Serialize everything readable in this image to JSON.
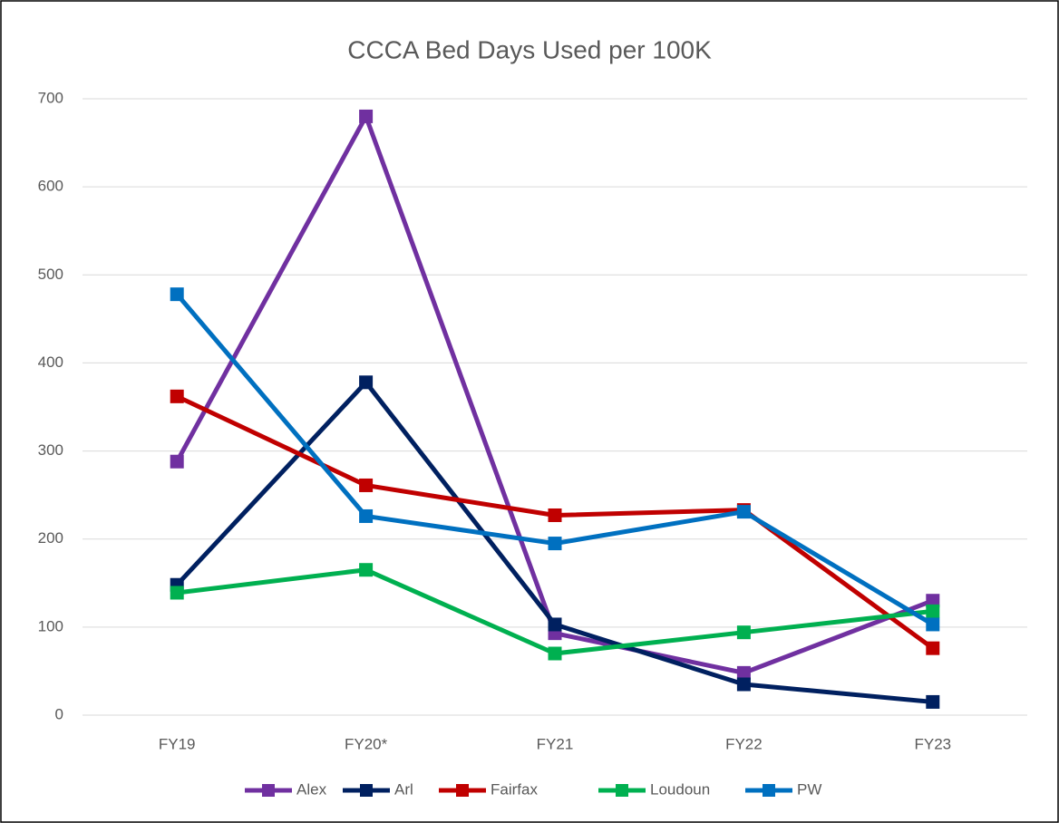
{
  "chart_data": {
    "type": "line",
    "title": "CCCA Bed Days Used per 100K",
    "categories": [
      "FY19",
      "FY20*",
      "FY21",
      "FY22",
      "FY23"
    ],
    "series": [
      {
        "name": "Alex",
        "color": "#7030a0",
        "values": [
          288,
          680,
          93,
          48,
          130
        ]
      },
      {
        "name": "Arl",
        "color": "#002060",
        "values": [
          148,
          378,
          103,
          35,
          15
        ]
      },
      {
        "name": "Fairfax",
        "color": "#c00000",
        "values": [
          362,
          261,
          227,
          233,
          76
        ]
      },
      {
        "name": "Loudoun",
        "color": "#00b050",
        "values": [
          139,
          165,
          70,
          94,
          118
        ]
      },
      {
        "name": "PW",
        "color": "#0070c0",
        "values": [
          478,
          226,
          195,
          231,
          103
        ]
      }
    ],
    "ylim": [
      0,
      700
    ],
    "yticks": [
      0,
      100,
      200,
      300,
      400,
      500,
      600,
      700
    ],
    "grid": true,
    "legend": "bottom"
  }
}
